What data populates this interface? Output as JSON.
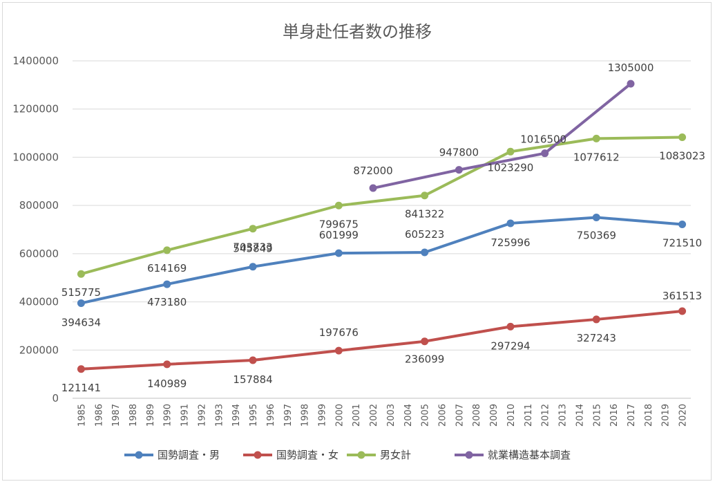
{
  "chart_data": {
    "type": "line",
    "title": "単身赴任者数の推移",
    "xlabel": "",
    "ylabel": "",
    "ylim": [
      0,
      1400000
    ],
    "yticks": [
      "0",
      "200000",
      "400000",
      "600000",
      "800000",
      "1000000",
      "1200000",
      "1400000"
    ],
    "x": [
      "1985",
      "1986",
      "1987",
      "1988",
      "1989",
      "1990",
      "1991",
      "1992",
      "1993",
      "1994",
      "1995",
      "1996",
      "1997",
      "1998",
      "1999",
      "2000",
      "2001",
      "2002",
      "2003",
      "2004",
      "2005",
      "2006",
      "2007",
      "2008",
      "2009",
      "2010",
      "2011",
      "2012",
      "2013",
      "2014",
      "2015",
      "2016",
      "2017",
      "2018",
      "2019",
      "2020"
    ],
    "grid": true,
    "legend_position": "bottom",
    "series": [
      {
        "name": "国勢調査・男",
        "color": "#4f81bd",
        "points": [
          [
            "1985",
            394634
          ],
          [
            "1990",
            473180
          ],
          [
            "1995",
            545849
          ],
          [
            "2000",
            601999
          ],
          [
            "2005",
            605223
          ],
          [
            "2010",
            725996
          ],
          [
            "2015",
            750369
          ],
          [
            "2020",
            721510
          ]
        ]
      },
      {
        "name": "国勢調査・女",
        "color": "#c0504d",
        "points": [
          [
            "1985",
            121141
          ],
          [
            "1990",
            140989
          ],
          [
            "1995",
            157884
          ],
          [
            "2000",
            197676
          ],
          [
            "2005",
            236099
          ],
          [
            "2010",
            297294
          ],
          [
            "2015",
            327243
          ],
          [
            "2020",
            361513
          ]
        ]
      },
      {
        "name": "男女計",
        "color": "#9bbb59",
        "points": [
          [
            "1985",
            515775
          ],
          [
            "1990",
            614169
          ],
          [
            "1995",
            703733
          ],
          [
            "2000",
            799675
          ],
          [
            "2005",
            841322
          ],
          [
            "2010",
            1023290
          ],
          [
            "2015",
            1077612
          ],
          [
            "2020",
            1083023
          ]
        ]
      },
      {
        "name": "就業構造基本調査",
        "color": "#8064a2",
        "points": [
          [
            "2002",
            872000
          ],
          [
            "2007",
            947800
          ],
          [
            "2012",
            1016500
          ],
          [
            "2017",
            1305000
          ]
        ]
      }
    ]
  }
}
